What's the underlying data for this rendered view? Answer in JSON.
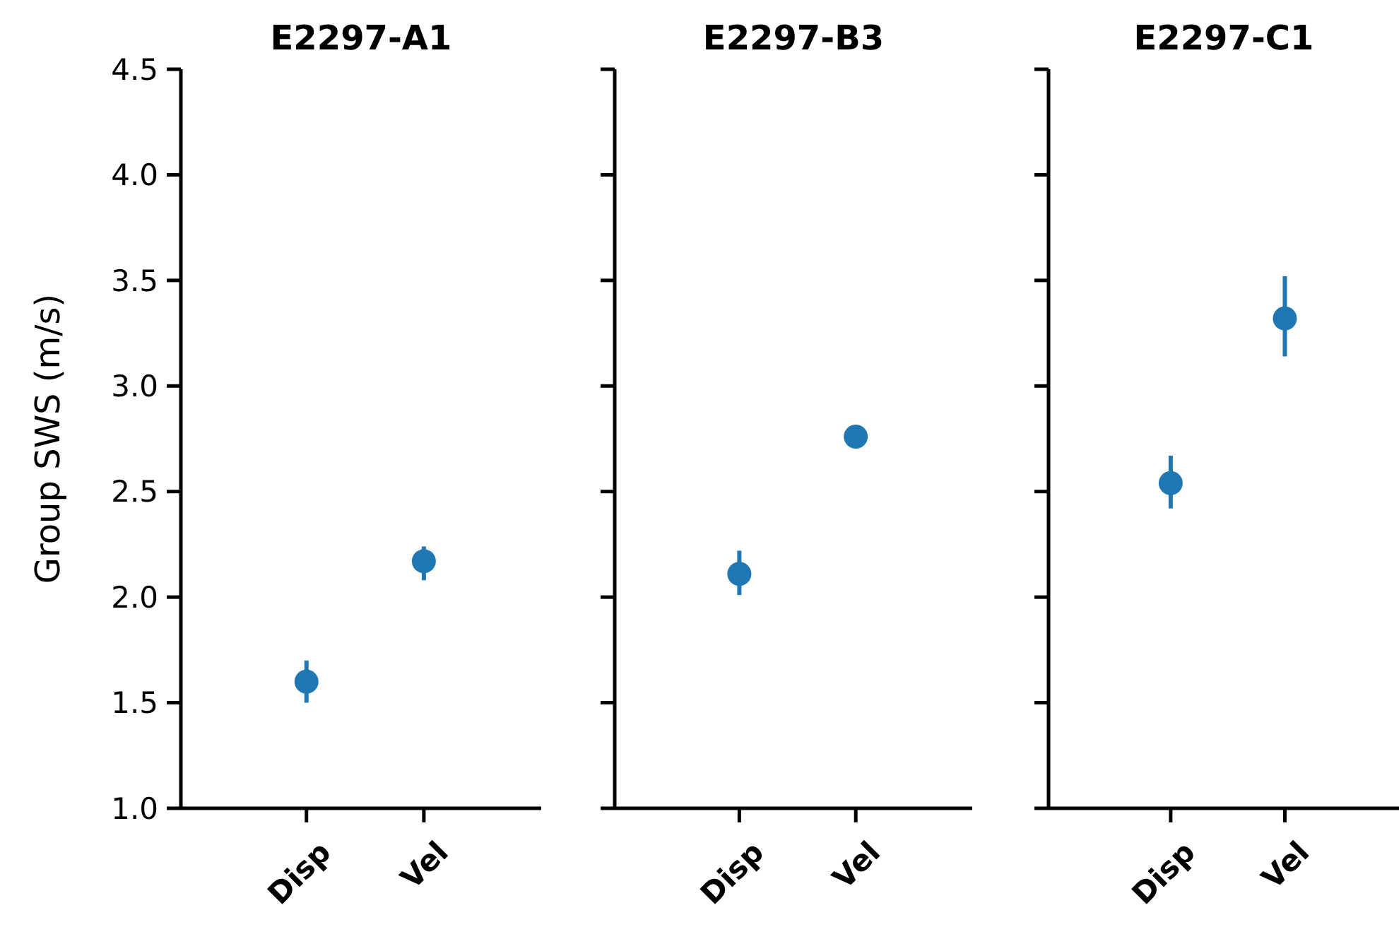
{
  "chart_data": [
    {
      "type": "scatter",
      "title": "E2297-A1",
      "ylabel": "Group SWS (m/s)",
      "categories": [
        "Disp",
        "Vel"
      ],
      "values": [
        1.6,
        2.17
      ],
      "errors": [
        [
          1.5,
          1.7
        ],
        [
          2.08,
          2.24
        ]
      ],
      "color": "#1f77b4",
      "marker": "circle",
      "ylim": [
        1.0,
        4.5
      ],
      "yticks": [
        {
          "value": 1,
          "label": "1.0"
        },
        1.5,
        {
          "value": 2,
          "label": "2.0"
        },
        2.5,
        {
          "value": 3,
          "label": "3.0"
        },
        3.5,
        {
          "value": 4,
          "label": "4.0"
        },
        4.5
      ],
      "grid": false
    },
    {
      "type": "scatter",
      "title": "E2297-B3",
      "categories": [
        "Disp",
        "Vel"
      ],
      "values": [
        2.11,
        2.76
      ],
      "errors": [
        [
          2.01,
          2.22
        ],
        null
      ],
      "color": "#1f77b4",
      "marker": "circle",
      "ylim": [
        1.0,
        4.5
      ],
      "yticks": [
        1,
        1.5,
        2,
        2.5,
        3,
        3.5,
        4,
        4.5
      ],
      "grid": false,
      "tick_labels": "x"
    },
    {
      "type": "scatter",
      "title": "E2297-C1",
      "categories": [
        "Disp",
        "Vel"
      ],
      "values": [
        2.54,
        3.32
      ],
      "errors": [
        [
          2.42,
          2.67
        ],
        [
          3.14,
          3.52
        ]
      ],
      "color": "#1f77b4",
      "marker": "circle",
      "ylim": [
        1.0,
        4.5
      ],
      "yticks": [
        1,
        1.5,
        2,
        2.5,
        3,
        3.5,
        4,
        4.5
      ],
      "grid": false,
      "tick_labels": "x"
    }
  ]
}
